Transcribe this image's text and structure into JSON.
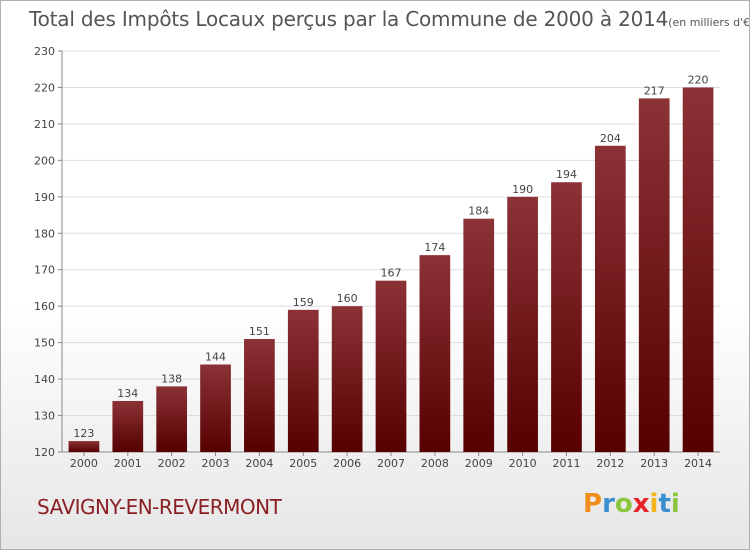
{
  "chart_data": {
    "type": "bar",
    "title": "Total des Impôts Locaux perçus par la Commune de 2000 à 2014",
    "subtitle": "(en milliers d'€)",
    "categories": [
      "2000",
      "2001",
      "2002",
      "2003",
      "2004",
      "2005",
      "2006",
      "2007",
      "2008",
      "2009",
      "2010",
      "2011",
      "2012",
      "2013",
      "2014"
    ],
    "values": [
      123,
      134,
      138,
      144,
      151,
      159,
      160,
      167,
      174,
      184,
      190,
      194,
      204,
      217,
      220
    ],
    "ylim": [
      120,
      230
    ],
    "yticks": [
      120,
      130,
      140,
      150,
      160,
      170,
      180,
      190,
      200,
      210,
      220,
      230
    ],
    "grid": true,
    "legend": "none",
    "bar_color_top": "#8b3236",
    "bar_color_bottom": "#560000"
  },
  "footer": {
    "commune": "SAVIGNY-EN-REVERMONT",
    "brand": [
      "P",
      "r",
      "o",
      "x",
      "i",
      "t",
      "i"
    ],
    "brand_colors": [
      "#f28c1c",
      "#3a8fd0",
      "#8cc63f",
      "#e8232a",
      "#f2b51c",
      "#3a8fd0",
      "#8cc63f"
    ]
  }
}
